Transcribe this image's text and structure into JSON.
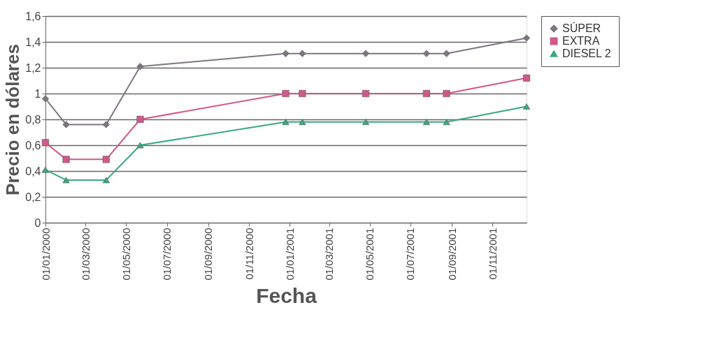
{
  "chart_data": {
    "type": "line",
    "xlabel": "Fecha",
    "ylabel": "Precio en dólares",
    "x": [
      "2000-01-01",
      "2000-02-01",
      "2000-04-01",
      "2000-05-22",
      "2000-12-26",
      "2001-01-20",
      "2001-04-25",
      "2001-07-25",
      "2001-08-24",
      "2001-12-22"
    ],
    "series": [
      {
        "name": "SÚPER",
        "color": "#7f7580",
        "marker": "diamond",
        "values": [
          0.96,
          0.76,
          0.76,
          1.21,
          1.31,
          1.31,
          1.31,
          1.31,
          1.31,
          1.43
        ]
      },
      {
        "name": "EXTRA",
        "color": "#d0588a",
        "marker": "square",
        "values": [
          0.62,
          0.49,
          0.49,
          0.8,
          1.0,
          1.0,
          1.0,
          1.0,
          1.0,
          1.12
        ]
      },
      {
        "name": "DIESEL 2",
        "color": "#3aa880",
        "marker": "triangle",
        "values": [
          0.41,
          0.33,
          0.33,
          0.6,
          0.78,
          0.78,
          0.78,
          0.78,
          0.78,
          0.9
        ]
      }
    ],
    "xlim": [
      "2000-01-01",
      "2001-12-22"
    ],
    "xticks": [
      {
        "value": "2000-01-01",
        "label": "01/01/2000"
      },
      {
        "value": "2000-03-01",
        "label": "01/03/2000"
      },
      {
        "value": "2000-05-01",
        "label": "01/05/2000"
      },
      {
        "value": "2000-07-01",
        "label": "01/07/2000"
      },
      {
        "value": "2000-09-01",
        "label": "01/09/2000"
      },
      {
        "value": "2000-11-01",
        "label": "01/11/2000"
      },
      {
        "value": "2001-01-01",
        "label": "01/01/2001"
      },
      {
        "value": "2001-03-01",
        "label": "01/03/2001"
      },
      {
        "value": "2001-05-01",
        "label": "01/05/2001"
      },
      {
        "value": "2001-07-01",
        "label": "01/07/2001"
      },
      {
        "value": "2001-09-01",
        "label": "01/09/2001"
      },
      {
        "value": "2001-11-01",
        "label": "01/11/2001"
      }
    ],
    "ylim": [
      0,
      1.6
    ],
    "yticks": [
      0,
      {
        "value": 0.2,
        "label": "0,2"
      },
      {
        "value": 0.4,
        "label": "0,4"
      },
      {
        "value": 0.6,
        "label": "0,6"
      },
      {
        "value": 0.8,
        "label": "0,8"
      },
      1,
      {
        "value": 1.2,
        "label": "1,2"
      },
      {
        "value": 1.4,
        "label": "1,4"
      },
      {
        "value": 1.6,
        "label": "1,6"
      }
    ],
    "grid": "y",
    "legend": "right",
    "line_style": "solid"
  }
}
